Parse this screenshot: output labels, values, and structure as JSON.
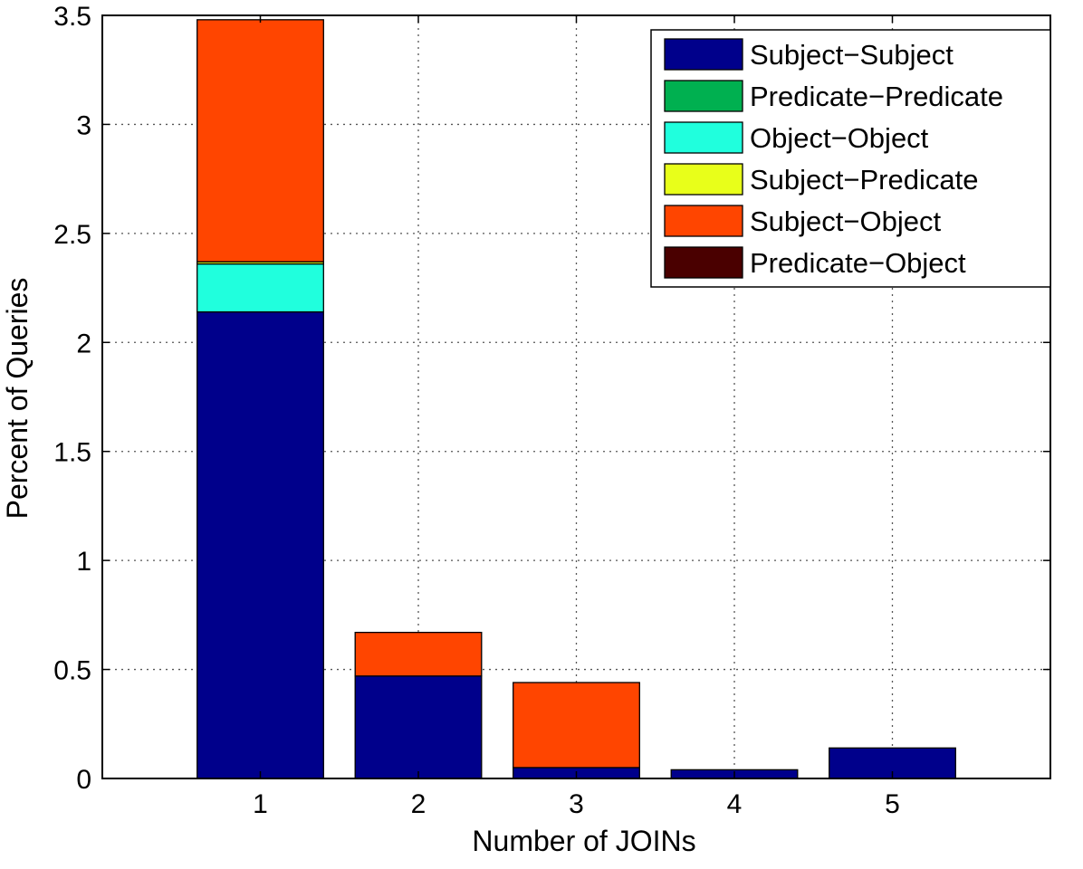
{
  "chart_data": {
    "type": "bar",
    "stacked": true,
    "title": "",
    "xlabel": "Number of JOINs",
    "ylabel": "Percent of Queries",
    "categories": [
      "1",
      "2",
      "3",
      "4",
      "5"
    ],
    "xlim": [
      0,
      6
    ],
    "ylim": [
      0,
      3.5
    ],
    "yticks": [
      "0",
      "0.5",
      "1",
      "1.5",
      "2",
      "2.5",
      "3",
      "3.5"
    ],
    "grid": true,
    "legend_position": "top-right",
    "series": [
      {
        "name": "Subject−Subject",
        "color": "#00008b",
        "values": [
          2.14,
          0.47,
          0.05,
          0.04,
          0.14
        ]
      },
      {
        "name": "Predicate−Predicate",
        "color": "#00b050",
        "values": [
          0,
          0,
          0,
          0,
          0
        ]
      },
      {
        "name": "Object−Object",
        "color": "#20ffdd",
        "values": [
          0.22,
          0,
          0,
          0,
          0
        ]
      },
      {
        "name": "Subject−Predicate",
        "color": "#e8ff1a",
        "values": [
          0.01,
          0,
          0,
          0,
          0
        ]
      },
      {
        "name": "Subject−Object",
        "color": "#ff4500",
        "values": [
          1.11,
          0.2,
          0.39,
          0,
          0
        ]
      },
      {
        "name": "Predicate−Object",
        "color": "#4a0000",
        "values": [
          0,
          0,
          0,
          0,
          0
        ]
      }
    ]
  }
}
